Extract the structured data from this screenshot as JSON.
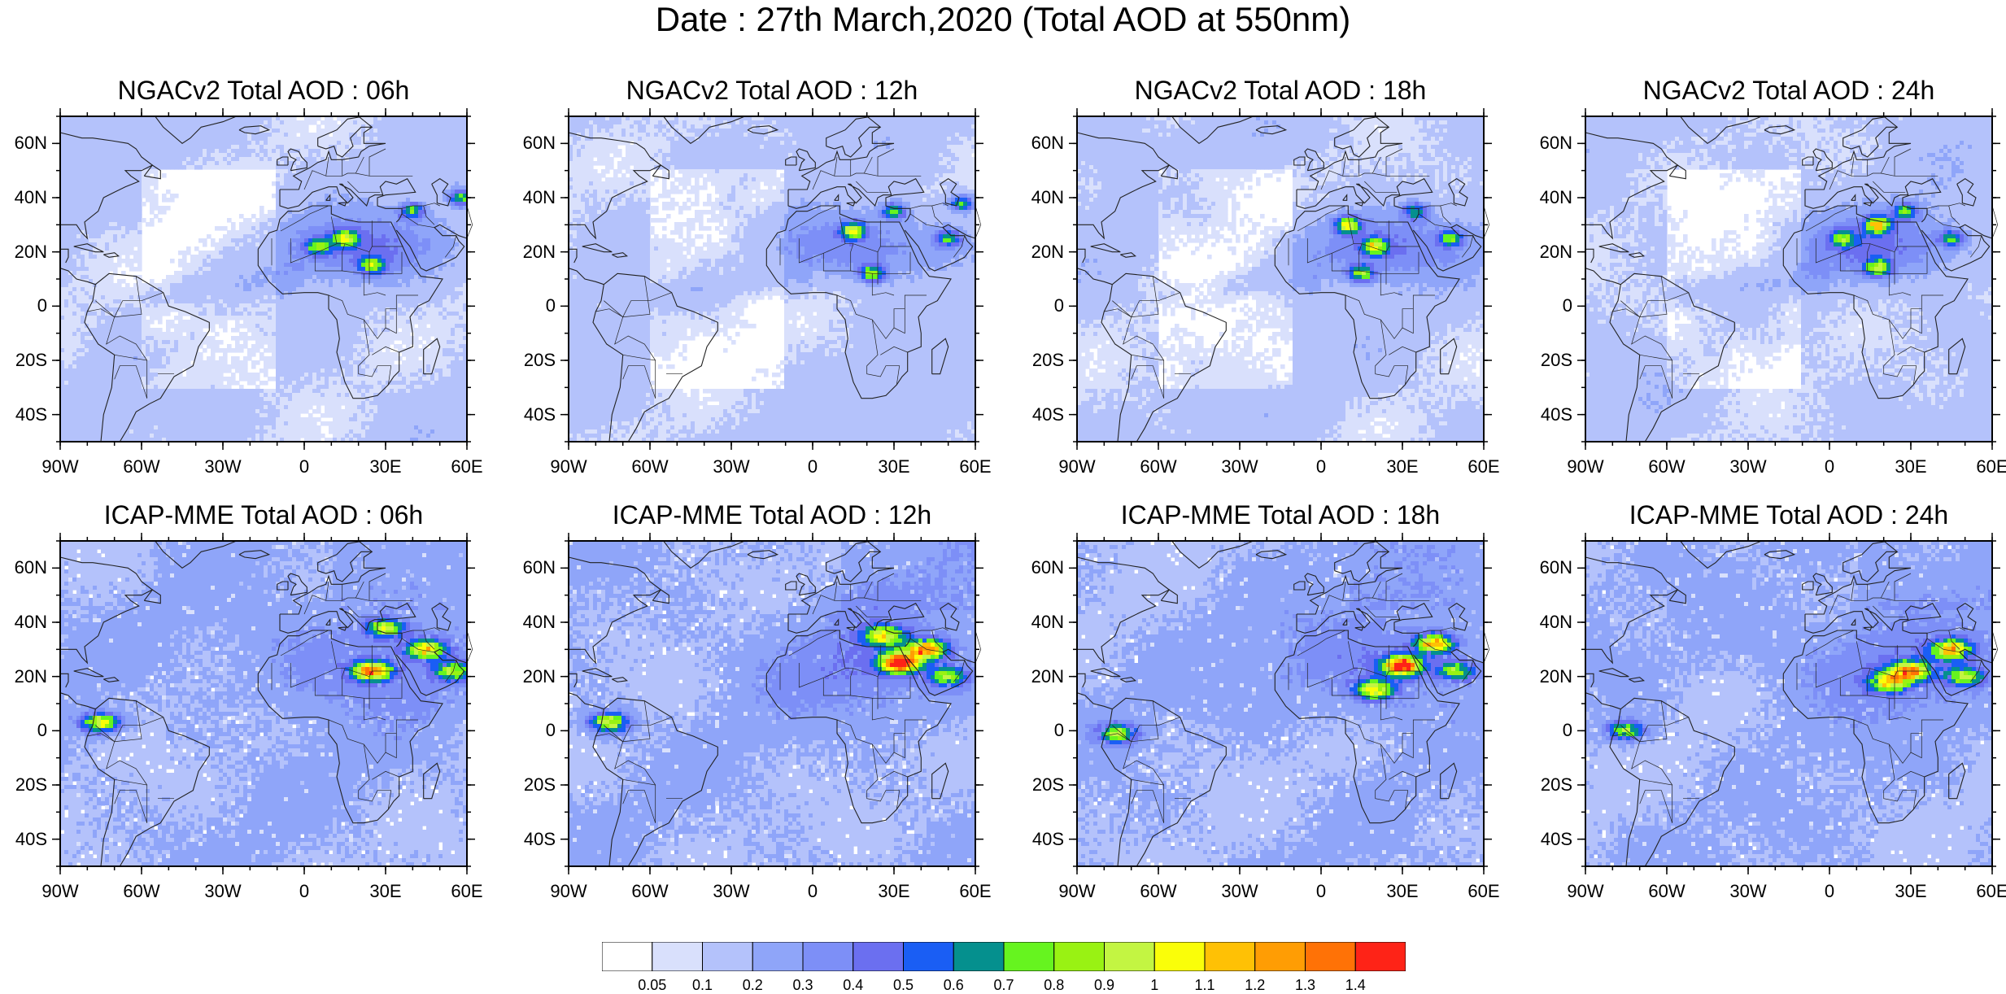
{
  "page": {
    "title": "Date : 27th March,2020 (Total AOD at 550nm)"
  },
  "map_extent": {
    "lon": [
      -90,
      60
    ],
    "lat": [
      -50,
      70
    ]
  },
  "axis_labels": {
    "lat": [
      "60N",
      "40N",
      "20N",
      "0",
      "20S",
      "40S"
    ],
    "lon": [
      "90W",
      "60W",
      "30W",
      "0",
      "30E",
      "60E"
    ]
  },
  "lat_tick_values": [
    60,
    40,
    20,
    0,
    -20,
    -40
  ],
  "lon_tick_values": [
    -90,
    -60,
    -30,
    0,
    30,
    60
  ],
  "rows": [
    {
      "model": "NGACv2",
      "panels": [
        {
          "title": "NGACv2 Total AOD : 06h",
          "lead": "06h",
          "hotspots": [
            [
              15,
              25,
              0.7
            ],
            [
              25,
              15,
              0.65
            ],
            [
              40,
              35,
              0.55
            ],
            [
              58,
              40,
              0.6
            ],
            [
              5,
              22,
              0.5
            ]
          ]
        },
        {
          "title": "NGACv2 Total AOD : 12h",
          "lead": "12h",
          "hotspots": [
            [
              15,
              28,
              0.75
            ],
            [
              22,
              12,
              0.65
            ],
            [
              30,
              35,
              0.6
            ],
            [
              55,
              38,
              0.6
            ],
            [
              50,
              25,
              0.55
            ]
          ]
        },
        {
          "title": "NGACv2 Total AOD : 18h",
          "lead": "18h",
          "hotspots": [
            [
              10,
              30,
              0.8
            ],
            [
              20,
              22,
              0.7
            ],
            [
              15,
              12,
              0.65
            ],
            [
              35,
              35,
              0.55
            ],
            [
              48,
              25,
              0.55
            ]
          ]
        },
        {
          "title": "NGACv2 Total AOD : 24h",
          "lead": "24h",
          "hotspots": [
            [
              18,
              30,
              0.85
            ],
            [
              18,
              14,
              0.7
            ],
            [
              28,
              35,
              0.55
            ],
            [
              45,
              25,
              0.55
            ],
            [
              5,
              25,
              0.5
            ]
          ]
        }
      ]
    },
    {
      "model": "ICAP-MME",
      "panels": [
        {
          "title": "ICAP-MME Total AOD : 06h",
          "lead": "06h",
          "hotspots": [
            [
              25,
              22,
              1.0
            ],
            [
              45,
              30,
              0.85
            ],
            [
              30,
              38,
              0.7
            ],
            [
              -75,
              3,
              0.85
            ],
            [
              55,
              22,
              0.6
            ]
          ]
        },
        {
          "title": "ICAP-MME Total AOD : 12h",
          "lead": "12h",
          "hotspots": [
            [
              32,
              25,
              1.3
            ],
            [
              42,
              30,
              1.0
            ],
            [
              26,
              35,
              0.75
            ],
            [
              -75,
              3,
              0.85
            ],
            [
              50,
              20,
              0.6
            ]
          ]
        },
        {
          "title": "ICAP-MME Total AOD : 18h",
          "lead": "18h",
          "hotspots": [
            [
              30,
              24,
              1.25
            ],
            [
              42,
              32,
              1.0
            ],
            [
              20,
              15,
              0.8
            ],
            [
              -75,
              -1,
              0.7
            ],
            [
              50,
              22,
              0.6
            ]
          ]
        },
        {
          "title": "ICAP-MME Total AOD : 24h",
          "lead": "24h",
          "hotspots": [
            [
              30,
              22,
              0.95
            ],
            [
              45,
              30,
              0.9
            ],
            [
              22,
              18,
              0.8
            ],
            [
              -75,
              0,
              0.65
            ],
            [
              50,
              20,
              0.6
            ]
          ]
        }
      ]
    }
  ],
  "colorbar": {
    "labels": [
      "0.05",
      "0.1",
      "0.2",
      "0.3",
      "0.4",
      "0.5",
      "0.6",
      "0.7",
      "0.8",
      "0.9",
      "1",
      "1.1",
      "1.2",
      "1.3",
      "1.4"
    ],
    "colors": [
      "#ffffff",
      "#d9e0fc",
      "#b4c2fb",
      "#8fa5f9",
      "#7d8ff7",
      "#6b6ff0",
      "#1a5ef4",
      "#05908e",
      "#66f41f",
      "#99f213",
      "#c3f542",
      "#fafe09",
      "#ffc105",
      "#ff9d04",
      "#ff7206",
      "#fe2317"
    ]
  },
  "colors": {
    "coastline": "#222222",
    "frame": "#000000"
  }
}
